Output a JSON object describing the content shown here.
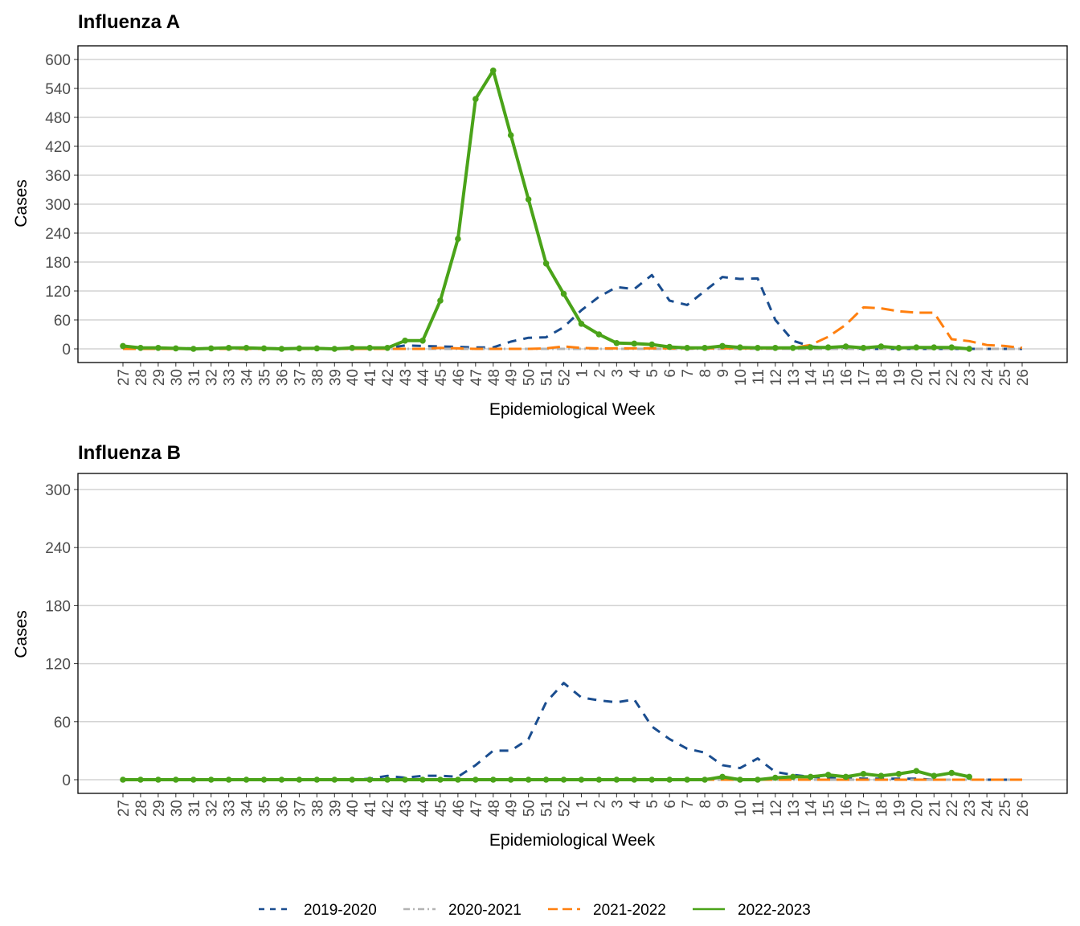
{
  "colors": {
    "2019-2020": "#1a4d8f",
    "2020-2021": "#b3b3b3",
    "2021-2022": "#ff7f0e",
    "2022-2023": "#4aa319"
  },
  "legend": {
    "position": "bottom",
    "items": [
      "2019-2020",
      "2020-2021",
      "2021-2022",
      "2022-2023"
    ]
  },
  "chart_data": [
    {
      "type": "line",
      "title": "Influenza A",
      "xlabel": "Epidemiological Week",
      "ylabel": "Cases",
      "ylim": [
        0,
        600
      ],
      "yticks": [
        0,
        60,
        120,
        180,
        240,
        300,
        360,
        420,
        480,
        540,
        600
      ],
      "grid": true,
      "categories": [
        "27",
        "28",
        "29",
        "30",
        "31",
        "32",
        "33",
        "34",
        "35",
        "36",
        "37",
        "38",
        "39",
        "40",
        "41",
        "42",
        "43",
        "44",
        "45",
        "46",
        "47",
        "48",
        "49",
        "50",
        "51",
        "52",
        "1",
        "2",
        "3",
        "4",
        "5",
        "6",
        "7",
        "8",
        "9",
        "10",
        "11",
        "12",
        "13",
        "14",
        "15",
        "16",
        "17",
        "18",
        "19",
        "20",
        "21",
        "22",
        "23",
        "24",
        "25",
        "26"
      ],
      "series": [
        {
          "name": "2019-2020",
          "values": [
            1,
            1,
            1,
            1,
            1,
            1,
            1,
            1,
            1,
            1,
            1,
            1,
            1,
            1,
            2,
            2,
            7,
            6,
            5,
            4,
            3,
            3,
            15,
            23,
            24,
            45,
            80,
            108,
            128,
            124,
            153,
            100,
            91,
            120,
            149,
            145,
            146,
            60,
            17,
            5,
            2,
            3,
            0,
            0,
            0,
            0,
            0,
            0,
            0,
            0,
            0,
            0
          ]
        },
        {
          "name": "2020-2021",
          "values": [
            0,
            0,
            0,
            0,
            0,
            0,
            0,
            0,
            0,
            0,
            0,
            0,
            0,
            0,
            0,
            0,
            0,
            0,
            0,
            0,
            0,
            0,
            0,
            0,
            0,
            0,
            0,
            0,
            0,
            0,
            0,
            0,
            0,
            0,
            0,
            0,
            0,
            0,
            0,
            0,
            0,
            0,
            0,
            0,
            0,
            0,
            0,
            0,
            0,
            0,
            0,
            0
          ]
        },
        {
          "name": "2021-2022",
          "values": [
            0,
            0,
            0,
            0,
            0,
            0,
            0,
            0,
            0,
            0,
            0,
            0,
            0,
            0,
            0,
            0,
            0,
            0,
            2,
            1,
            0,
            0,
            0,
            0,
            1,
            5,
            2,
            1,
            1,
            1,
            1,
            1,
            1,
            1,
            1,
            1,
            1,
            1,
            2,
            8,
            25,
            50,
            86,
            84,
            78,
            75,
            75,
            20,
            16,
            8,
            6,
            2
          ]
        },
        {
          "name": "2022-2023",
          "values": [
            6,
            2,
            2,
            1,
            0,
            1,
            2,
            2,
            1,
            0,
            1,
            1,
            0,
            2,
            2,
            2,
            17,
            17,
            100,
            228,
            518,
            577,
            443,
            310,
            177,
            114,
            52,
            30,
            12,
            11,
            9,
            4,
            2,
            2,
            6,
            3,
            2,
            2,
            2,
            3,
            3,
            5,
            2,
            5,
            2,
            3,
            3,
            3,
            0,
            null,
            null,
            null
          ]
        }
      ]
    },
    {
      "type": "line",
      "title": "Influenza B",
      "xlabel": "Epidemiological Week",
      "ylabel": "Cases",
      "ylim": [
        0,
        300
      ],
      "yticks": [
        0,
        60,
        120,
        180,
        240,
        300
      ],
      "grid": true,
      "categories": [
        "27",
        "28",
        "29",
        "30",
        "31",
        "32",
        "33",
        "34",
        "35",
        "36",
        "37",
        "38",
        "39",
        "40",
        "41",
        "42",
        "43",
        "44",
        "45",
        "46",
        "47",
        "48",
        "49",
        "50",
        "51",
        "52",
        "1",
        "2",
        "3",
        "4",
        "5",
        "6",
        "7",
        "8",
        "9",
        "10",
        "11",
        "12",
        "13",
        "14",
        "15",
        "16",
        "17",
        "18",
        "19",
        "20",
        "21",
        "22",
        "23",
        "24",
        "25",
        "26"
      ],
      "series": [
        {
          "name": "2019-2020",
          "values": [
            0,
            0,
            0,
            0,
            0,
            0,
            0,
            0,
            0,
            0,
            0,
            0,
            0,
            0,
            1,
            4,
            2,
            4,
            4,
            3,
            15,
            30,
            30,
            42,
            80,
            100,
            85,
            82,
            80,
            83,
            55,
            42,
            32,
            28,
            15,
            12,
            22,
            8,
            5,
            3,
            2,
            2,
            1,
            1,
            1,
            1,
            0,
            0,
            0,
            0,
            0,
            0
          ]
        },
        {
          "name": "2020-2021",
          "values": [
            0,
            0,
            0,
            0,
            0,
            0,
            0,
            0,
            0,
            0,
            0,
            0,
            0,
            0,
            0,
            0,
            0,
            0,
            0,
            0,
            0,
            0,
            0,
            0,
            0,
            0,
            0,
            0,
            0,
            0,
            0,
            0,
            0,
            0,
            0,
            0,
            0,
            0,
            0,
            0,
            0,
            0,
            0,
            0,
            0,
            0,
            0,
            0,
            0,
            0,
            0,
            0
          ]
        },
        {
          "name": "2021-2022",
          "values": [
            0,
            0,
            0,
            0,
            0,
            0,
            0,
            0,
            0,
            0,
            0,
            0,
            0,
            0,
            0,
            0,
            0,
            0,
            0,
            0,
            0,
            0,
            0,
            0,
            0,
            0,
            0,
            0,
            0,
            0,
            0,
            0,
            0,
            0,
            0,
            0,
            0,
            0,
            0,
            0,
            0,
            0,
            0,
            0,
            0,
            0,
            0,
            0,
            0,
            0,
            0,
            0
          ]
        },
        {
          "name": "2022-2023",
          "values": [
            0,
            0,
            0,
            0,
            0,
            0,
            0,
            0,
            0,
            0,
            0,
            0,
            0,
            0,
            0,
            0,
            0,
            0,
            0,
            0,
            0,
            0,
            0,
            0,
            0,
            0,
            0,
            0,
            0,
            0,
            0,
            0,
            0,
            0,
            3,
            0,
            0,
            2,
            3,
            3,
            5,
            3,
            6,
            4,
            6,
            9,
            4,
            7,
            3,
            null,
            null,
            null
          ]
        }
      ]
    }
  ]
}
